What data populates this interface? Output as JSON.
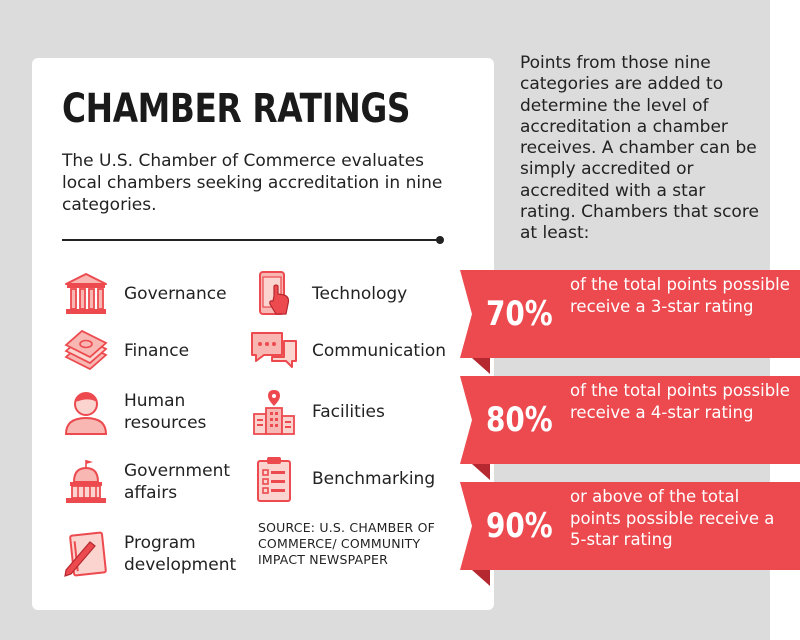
{
  "title": "CHAMBER RATINGS",
  "intro": "The U.S. Chamber of Commerce evaluates local chambers seeking accreditation in nine categories.",
  "categories": [
    {
      "label": "Governance",
      "icon": "bank-building-icon"
    },
    {
      "label": "Technology",
      "icon": "smartphone-touch-icon"
    },
    {
      "label": "Finance",
      "icon": "money-stack-icon"
    },
    {
      "label": "Communication",
      "icon": "chat-bubbles-icon"
    },
    {
      "label": "Human resources",
      "icon": "person-icon"
    },
    {
      "label": "Facilities",
      "icon": "office-building-icon"
    },
    {
      "label": "Government affairs",
      "icon": "capitol-dome-icon"
    },
    {
      "label": "Benchmarking",
      "icon": "checklist-clipboard-icon"
    },
    {
      "label": "Program development",
      "icon": "notebook-pen-icon"
    }
  ],
  "source": "SOURCE: U.S. CHAMBER OF COMMERCE/ COMMUNITY IMPACT NEWSPAPER",
  "side_text": "Points from those nine categories are added to determine the level of accreditation a chamber receives. A chamber can be simply accredited or accredited with a star rating. Chambers that score at least:",
  "ratings": [
    {
      "percent": "70%",
      "text": "of the total points possible receive a 3-star rating"
    },
    {
      "percent": "80%",
      "text": "of the total points possible receive a 4-star rating"
    },
    {
      "percent": "90%",
      "text": "or above of the total points possible receive a 5-star rating"
    }
  ],
  "colors": {
    "accent": "#ec4a4f",
    "accent_dark": "#b5282f",
    "background": "#dcdcdc"
  }
}
